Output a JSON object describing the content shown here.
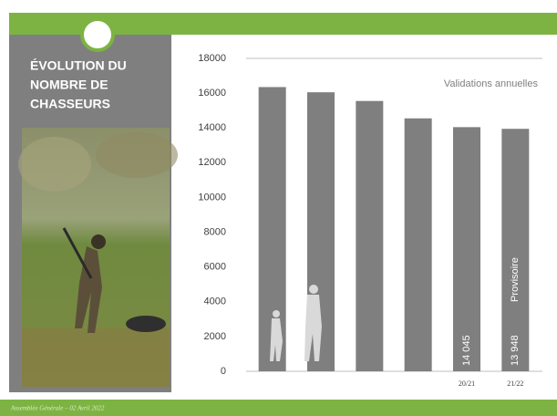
{
  "slide": {
    "title_lines": [
      "ÉVOLUTION DU",
      "NOMBRE DE",
      "CHASSEURS"
    ],
    "footer": "Assemblée Générale – 02 Avril 2022"
  },
  "chart_data": {
    "type": "bar",
    "annotations": [
      "Validations annuelles",
      "Provisoire"
    ],
    "categories": [
      null,
      null,
      null,
      null,
      "20/21",
      "21/22"
    ],
    "values": [
      16350,
      16050,
      15550,
      14550,
      14045,
      13948
    ],
    "value_labels": [
      null,
      null,
      null,
      null,
      "14 045",
      "13 948"
    ],
    "color": "#7f7f7f",
    "ylim": [
      0,
      18000
    ],
    "yticks": [
      0,
      2000,
      4000,
      6000,
      8000,
      10000,
      12000,
      14000,
      16000,
      18000
    ],
    "grid": false
  }
}
